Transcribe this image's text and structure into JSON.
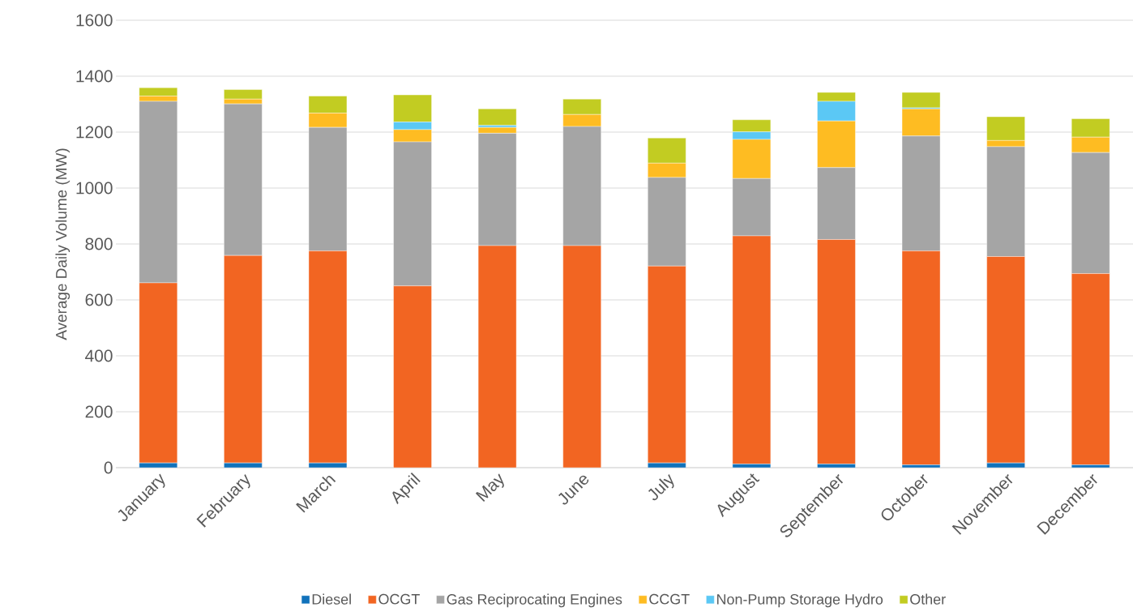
{
  "chart_data": {
    "type": "bar",
    "stacked": true,
    "ylabel": "Average Daily Volume (MW)",
    "categories": [
      "January",
      "February",
      "March",
      "April",
      "May",
      "June",
      "July",
      "August",
      "September",
      "October",
      "November",
      "December"
    ],
    "series": [
      {
        "name": "Diesel",
        "color": "#1172bb",
        "values": [
          17,
          17,
          17,
          0,
          0,
          0,
          17,
          13,
          13,
          10,
          17,
          10
        ]
      },
      {
        "name": "OCGT",
        "color": "#f26522",
        "values": [
          644,
          742,
          758,
          650,
          794,
          794,
          704,
          816,
          803,
          765,
          738,
          684
        ]
      },
      {
        "name": "Gas Reciprocating Engines",
        "color": "#a5a5a5",
        "values": [
          649,
          542,
          442,
          515,
          402,
          426,
          317,
          205,
          257,
          411,
          393,
          433
        ]
      },
      {
        "name": "CCGT",
        "color": "#febc22",
        "values": [
          19,
          17,
          51,
          44,
          21,
          43,
          51,
          140,
          167,
          97,
          22,
          55
        ]
      },
      {
        "name": "Non-Pump Storage Hydro",
        "color": "#5bc8f5",
        "values": [
          0,
          0,
          0,
          27,
          7,
          0,
          0,
          27,
          70,
          4,
          0,
          0
        ]
      },
      {
        "name": "Other",
        "color": "#c2cc22",
        "values": [
          30,
          34,
          61,
          97,
          59,
          55,
          90,
          43,
          32,
          55,
          85,
          66
        ]
      }
    ],
    "ylim": [
      0,
      1600
    ],
    "yticks": [
      0,
      200,
      400,
      600,
      800,
      1000,
      1200,
      1400,
      1600
    ],
    "grid": "y",
    "legend": "bottom"
  }
}
